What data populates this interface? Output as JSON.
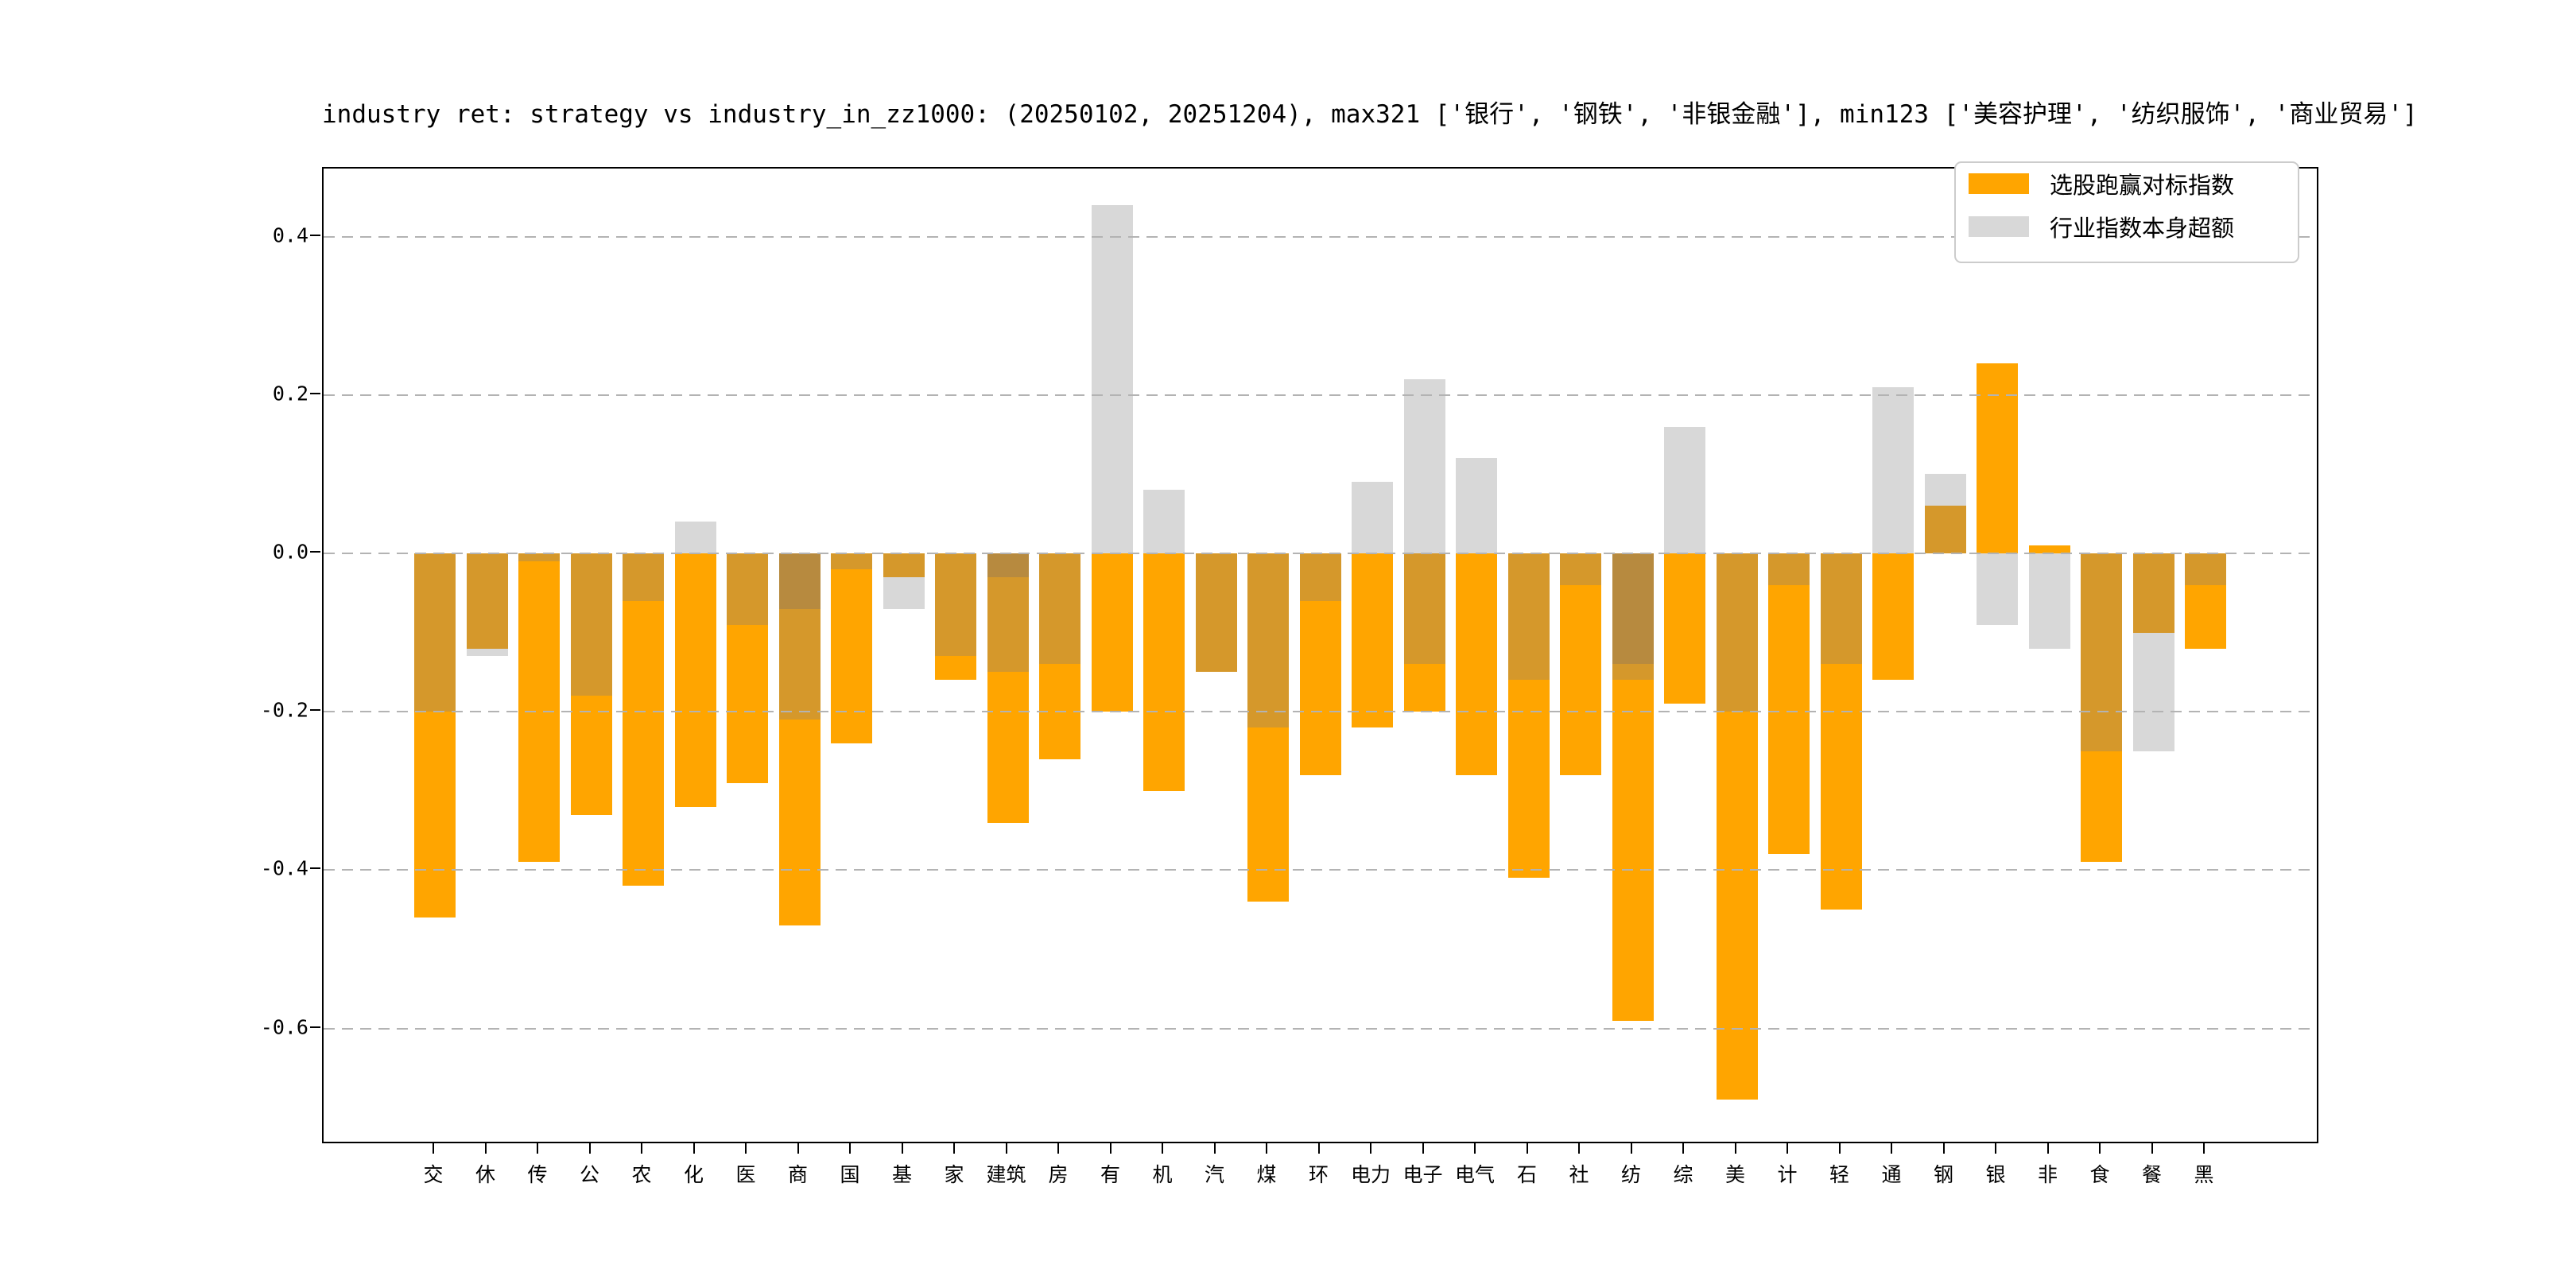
{
  "title": "industry ret: strategy vs industry_in_zz1000: (20250102, 20251204), max321 ['银行', '钢铁', '非银金融'], min123 ['美容护理', '纺织服饰', '商业贸易']",
  "legend": {
    "items": [
      {
        "label": "选股跑赢对标指数",
        "color": "#FFA500"
      },
      {
        "label": "行业指数本身超额",
        "color": "#D8D8D8"
      }
    ]
  },
  "colors": {
    "orange": "#FFA500",
    "gray": "#D8D8D8",
    "overlap": "#D5982B",
    "double_overlap": "#B78A3F",
    "gridline": "#b3b3b3",
    "spine": "#000000"
  },
  "y_axis": {
    "tick_labels": [
      "0.4",
      "0.2",
      "0.0",
      "-0.2",
      "-0.4",
      "-0.6"
    ],
    "tick_values": [
      0.4,
      0.2,
      0.0,
      -0.2,
      -0.4,
      -0.6
    ]
  },
  "chart_data": {
    "type": "bar",
    "title": "industry ret: strategy vs industry_in_zz1000: (20250102, 20251204), max321 ['银行', '钢铁', '非银金融'], min123 ['美容护理', '纺织服饰', '商业贸易']",
    "categories": [
      "交",
      "休",
      "传",
      "公",
      "农",
      "化",
      "医",
      "商",
      "国",
      "基",
      "家",
      "建筑",
      "房",
      "有",
      "机",
      "汽",
      "煤",
      "环",
      "电力",
      "电子",
      "电气",
      "石",
      "社",
      "纺",
      "综",
      "美",
      "计",
      "轻",
      "通",
      "钢",
      "银",
      "非",
      "食",
      "餐",
      "黑"
    ],
    "series": [
      {
        "name": "选股跑赢对标指数",
        "values": [
          -0.46,
          -0.12,
          -0.39,
          -0.33,
          -0.42,
          -0.32,
          -0.29,
          -0.47,
          -0.24,
          -0.03,
          -0.16,
          -0.34,
          -0.26,
          -0.2,
          -0.3,
          -0.15,
          -0.44,
          -0.28,
          -0.22,
          -0.2,
          -0.28,
          -0.41,
          -0.28,
          -0.59,
          -0.19,
          -0.69,
          -0.38,
          -0.45,
          -0.16,
          0.06,
          0.24,
          0.01,
          -0.39,
          -0.1,
          -0.12
        ]
      },
      {
        "name": "行业指数本身超额",
        "values": [
          -0.2,
          -0.13,
          -0.01,
          -0.18,
          -0.06,
          0.04,
          -0.09,
          -0.21,
          -0.02,
          -0.07,
          -0.13,
          -0.15,
          -0.14,
          0.44,
          0.08,
          -0.15,
          -0.22,
          -0.06,
          0.09,
          0.22,
          0.12,
          -0.16,
          -0.04,
          -0.16,
          0.16,
          -0.2,
          -0.04,
          -0.14,
          0.21,
          0.1,
          -0.09,
          -0.12,
          -0.25,
          -0.25,
          -0.04
        ]
      }
    ],
    "extra_dark_band_to": [
      null,
      null,
      null,
      null,
      null,
      null,
      null,
      -0.07,
      null,
      null,
      null,
      -0.03,
      null,
      null,
      null,
      null,
      null,
      null,
      null,
      null,
      null,
      null,
      null,
      -0.14,
      null,
      null,
      null,
      null,
      null,
      null,
      null,
      null,
      null,
      null,
      null
    ],
    "extra_overlap_band_to": [
      null,
      null,
      null,
      null,
      null,
      null,
      null,
      null,
      null,
      null,
      null,
      null,
      null,
      null,
      null,
      null,
      null,
      null,
      null,
      -0.14,
      null,
      null,
      null,
      null,
      null,
      null,
      null,
      null,
      null,
      null,
      null,
      null,
      null,
      null,
      null
    ],
    "xlabel": "",
    "ylabel": "",
    "ylim": [
      -0.748,
      0.485
    ],
    "grid": true,
    "grid_values": [
      0.4,
      0.2,
      0.0,
      -0.2,
      -0.4,
      -0.6
    ],
    "legend_position": "upper right"
  }
}
